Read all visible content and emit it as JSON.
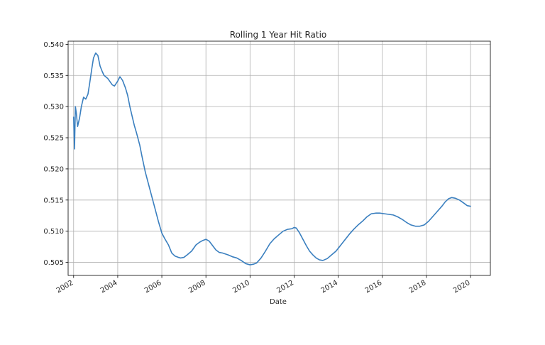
{
  "chart_data": {
    "type": "line",
    "title": "Rolling 1 Year Hit Ratio",
    "xlabel": "Date",
    "ylabel": "",
    "grid": true,
    "legend": "none",
    "x_tick_labels": [
      "2002",
      "2004",
      "2006",
      "2008",
      "2010",
      "2012",
      "2014",
      "2016",
      "2018",
      "2020"
    ],
    "y_tick_labels": [
      "0.505",
      "0.510",
      "0.515",
      "0.520",
      "0.525",
      "0.530",
      "0.535",
      "0.540"
    ],
    "xlim": [
      2001.75,
      2020.9
    ],
    "ylim": [
      0.5029,
      0.5405
    ],
    "color": "#3a7fbf",
    "series": [
      {
        "x": [
          2002.0,
          2002.04,
          2002.08,
          2002.12,
          2002.18,
          2002.27,
          2002.35,
          2002.45,
          2002.55,
          2002.65,
          2002.73,
          2002.82,
          2002.9,
          2003.0,
          2003.1,
          2003.2,
          2003.3,
          2003.38,
          2003.45,
          2003.55,
          2003.65,
          2003.75,
          2003.85,
          2004.0,
          2004.1,
          2004.22,
          2004.35,
          2004.45,
          2004.55,
          2004.65,
          2004.75,
          2004.85,
          2005.0,
          2005.1,
          2005.25,
          2005.4,
          2005.55,
          2005.7,
          2005.85,
          2006.0,
          2006.15,
          2006.3,
          2006.45,
          2006.6,
          2006.75,
          2006.85,
          2007.0,
          2007.15,
          2007.35,
          2007.55,
          2007.7,
          2007.85,
          2008.0,
          2008.15,
          2008.3,
          2008.45,
          2008.6,
          2008.75,
          2009.0,
          2009.2,
          2009.4,
          2009.6,
          2009.8,
          2010.0,
          2010.15,
          2010.3,
          2010.5,
          2010.7,
          2010.9,
          2011.1,
          2011.3,
          2011.5,
          2011.7,
          2011.9,
          2012.0,
          2012.1,
          2012.25,
          2012.4,
          2012.55,
          2012.7,
          2012.85,
          2013.0,
          2013.15,
          2013.3,
          2013.5,
          2013.7,
          2013.9,
          2014.1,
          2014.3,
          2014.5,
          2014.7,
          2014.9,
          2015.1,
          2015.3,
          2015.5,
          2015.7,
          2015.9,
          2016.1,
          2016.3,
          2016.5,
          2016.7,
          2016.9,
          2017.1,
          2017.3,
          2017.5,
          2017.7,
          2017.9,
          2018.1,
          2018.3,
          2018.5,
          2018.7,
          2018.85,
          2019.0,
          2019.15,
          2019.3,
          2019.5,
          2019.7,
          2019.85,
          2020.0
        ],
        "y": [
          0.5283,
          0.5232,
          0.53,
          0.529,
          0.5268,
          0.5282,
          0.53,
          0.5315,
          0.5312,
          0.532,
          0.5338,
          0.536,
          0.5378,
          0.5386,
          0.5382,
          0.5365,
          0.5356,
          0.535,
          0.5348,
          0.5345,
          0.534,
          0.5335,
          0.5333,
          0.5341,
          0.5348,
          0.5342,
          0.533,
          0.5318,
          0.53,
          0.5285,
          0.527,
          0.5258,
          0.5238,
          0.522,
          0.5195,
          0.5175,
          0.5155,
          0.5135,
          0.5115,
          0.5097,
          0.5087,
          0.5078,
          0.5065,
          0.506,
          0.5058,
          0.5057,
          0.5058,
          0.5062,
          0.5068,
          0.5078,
          0.5082,
          0.5085,
          0.5087,
          0.5084,
          0.5077,
          0.507,
          0.5066,
          0.5065,
          0.5062,
          0.5059,
          0.5057,
          0.5053,
          0.5048,
          0.5046,
          0.5047,
          0.5049,
          0.5057,
          0.5068,
          0.508,
          0.5088,
          0.5094,
          0.51,
          0.5103,
          0.5104,
          0.5106,
          0.5105,
          0.5097,
          0.5087,
          0.5077,
          0.5068,
          0.5062,
          0.5057,
          0.5054,
          0.5053,
          0.5056,
          0.5062,
          0.5068,
          0.5077,
          0.5086,
          0.5095,
          0.5103,
          0.511,
          0.5116,
          0.5123,
          0.5128,
          0.5129,
          0.5129,
          0.5128,
          0.5127,
          0.5126,
          0.5123,
          0.5119,
          0.5114,
          0.511,
          0.5108,
          0.5108,
          0.511,
          0.5116,
          0.5124,
          0.5132,
          0.514,
          0.5147,
          0.5152,
          0.5154,
          0.5153,
          0.515,
          0.5145,
          0.5141,
          0.514
        ]
      }
    ]
  }
}
